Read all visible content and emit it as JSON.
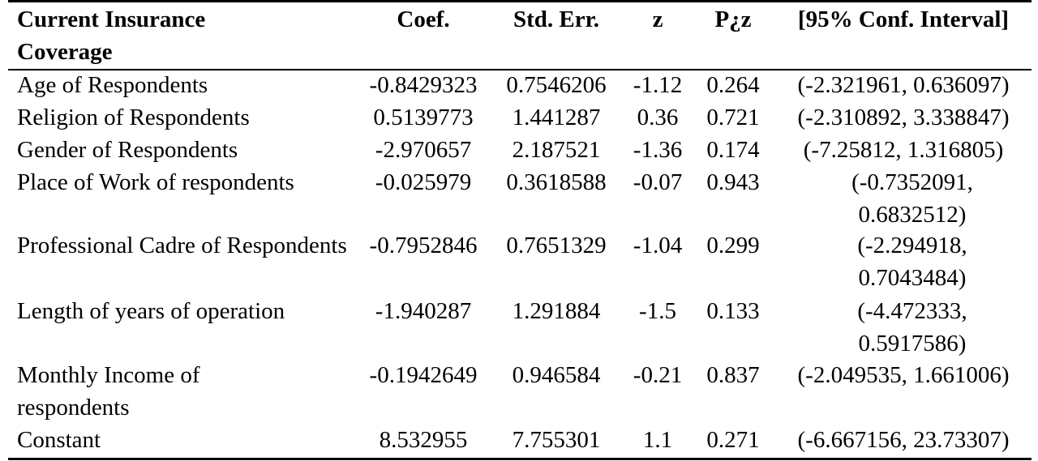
{
  "header": {
    "variable": "Current Insurance Coverage",
    "coef": "Coef.",
    "std_err": "Std. Err.",
    "z": "z",
    "p": "P¿z",
    "ci": "[95% Conf. Interval]"
  },
  "rows": [
    {
      "variable": "Age of Respondents",
      "coef": "-0.8429323",
      "std_err": "0.7546206",
      "z": "-1.12",
      "p": "0.264",
      "ci": "(-2.321961, 0.636097)"
    },
    {
      "variable": "Religion of Respondents",
      "coef": "0.5139773",
      "std_err": "1.441287",
      "z": "0.36",
      "p": "0.721",
      "ci": "(-2.310892, 3.338847)"
    },
    {
      "variable": "Gender of Respondents",
      "coef": "-2.970657",
      "std_err": "2.187521",
      "z": "-1.36",
      "p": "0.174",
      "ci": "(-7.25812, 1.316805)"
    },
    {
      "variable": "Place of Work of respondents",
      "coef": "-0.025979",
      "std_err": "0.3618588",
      "z": "-0.07",
      "p": "0.943",
      "ci": "(-0.7352091, 0.6832512)"
    },
    {
      "variable": "Professional Cadre of Respondents",
      "coef": "-0.7952846",
      "std_err": "0.7651329",
      "z": "-1.04",
      "p": "0.299",
      "ci": "(-2.294918, 0.7043484)"
    },
    {
      "variable": "Length of years of operation",
      "coef": "-1.940287",
      "std_err": "1.291884",
      "z": "-1.5",
      "p": "0.133",
      "ci": "(-4.472333, 0.5917586)"
    },
    {
      "variable": "Monthly Income of respondents",
      "coef": "-0.1942649",
      "std_err": "0.946584",
      "z": "-0.21",
      "p": "0.837",
      "ci": "(-2.049535, 1.661006)"
    },
    {
      "variable": "Constant",
      "coef": "8.532955",
      "std_err": "7.755301",
      "z": "1.1",
      "p": "0.271",
      "ci": "(-6.667156, 23.73307)"
    }
  ]
}
